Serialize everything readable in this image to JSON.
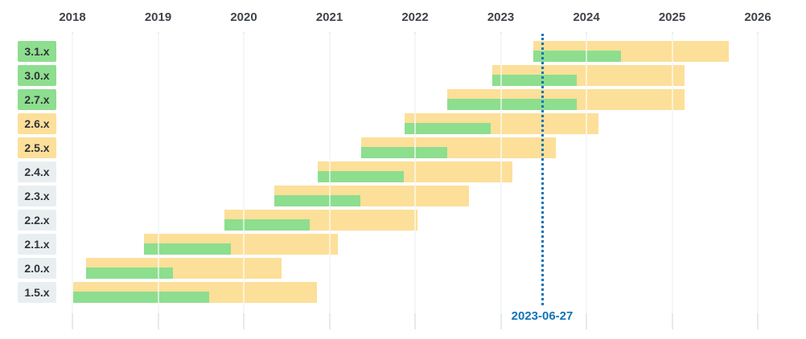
{
  "chart_data": {
    "type": "bar",
    "subtype": "gantt-timeline",
    "title": "",
    "grid": true,
    "x_axis": {
      "ticks": [
        2018,
        2019,
        2020,
        2021,
        2022,
        2023,
        2024,
        2025,
        2026
      ],
      "tick_labels": [
        "2018",
        "2019",
        "2020",
        "2021",
        "2022",
        "2023",
        "2024",
        "2025",
        "2026"
      ],
      "range": [
        2017.9,
        2026.5
      ]
    },
    "today_marker": {
      "label": "2023-06-27",
      "year": 2023.49
    },
    "rows": [
      {
        "version": "3.1.x",
        "status": "active",
        "start": 2023.38,
        "active_support_until": 2024.4,
        "eol": 2025.66
      },
      {
        "version": "3.0.x",
        "status": "active",
        "start": 2022.9,
        "active_support_until": 2023.89,
        "eol": 2025.15
      },
      {
        "version": "2.7.x",
        "status": "active",
        "start": 2022.38,
        "active_support_until": 2023.89,
        "eol": 2025.15
      },
      {
        "version": "2.6.x",
        "status": "security",
        "start": 2021.88,
        "active_support_until": 2022.88,
        "eol": 2024.14
      },
      {
        "version": "2.5.x",
        "status": "security",
        "start": 2021.37,
        "active_support_until": 2022.38,
        "eol": 2023.64
      },
      {
        "version": "2.4.x",
        "status": "eol",
        "start": 2020.86,
        "active_support_until": 2021.87,
        "eol": 2023.14
      },
      {
        "version": "2.3.x",
        "status": "eol",
        "start": 2020.36,
        "active_support_until": 2021.36,
        "eol": 2022.63
      },
      {
        "version": "2.2.x",
        "status": "eol",
        "start": 2019.77,
        "active_support_until": 2020.77,
        "eol": 2022.03
      },
      {
        "version": "2.1.x",
        "status": "eol",
        "start": 2018.84,
        "active_support_until": 2019.85,
        "eol": 2021.1
      },
      {
        "version": "2.0.x",
        "status": "eol",
        "start": 2018.16,
        "active_support_until": 2019.17,
        "eol": 2020.44
      },
      {
        "version": "1.5.x",
        "status": "eol",
        "start": 2018.01,
        "active_support_until": 2019.6,
        "eol": 2020.85
      }
    ],
    "colors": {
      "active_support": "#8dde8e",
      "security_support": "#fcdf99",
      "eol_label_bg": "#e9eff0",
      "gridline": "#e4eceb",
      "today": "#1273b8",
      "year_text": "#3f444a",
      "label_text": "#30343a"
    }
  }
}
